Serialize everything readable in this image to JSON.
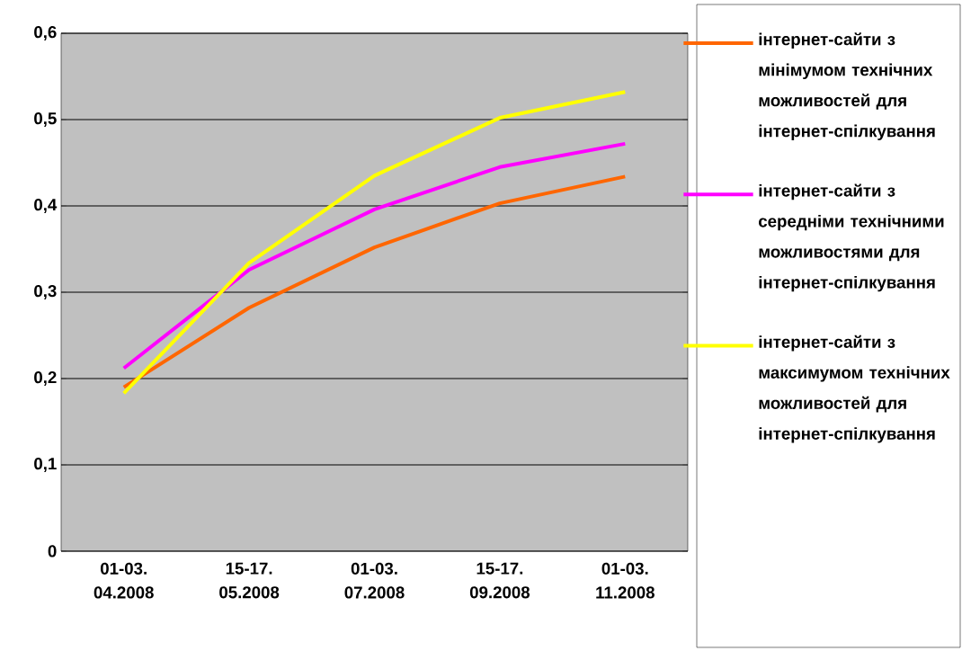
{
  "chart_data": {
    "type": "line",
    "categories": [
      "01-03. 04.2008",
      "15-17. 05.2008",
      "01-03. 07.2008",
      "15-17. 09.2008",
      "01-03. 11.2008"
    ],
    "series": [
      {
        "name": "інтернет-сайти з мінімумом технічних можливостей для інтернет-спілкування",
        "color": "#ff6600",
        "values": [
          0.19,
          0.282,
          0.352,
          0.403,
          0.434
        ]
      },
      {
        "name": "інтернет-сайти з середніми технічними можливостями для інтернет-спілкування",
        "color": "#ff00ff",
        "values": [
          0.212,
          0.326,
          0.396,
          0.445,
          0.472
        ]
      },
      {
        "name": "інтернет-сайти з максимумом технічних можливостей для інтернет-спілкування",
        "color": "#ffff00",
        "values": [
          0.183,
          0.334,
          0.435,
          0.502,
          0.532
        ]
      }
    ],
    "ylim": [
      0,
      0.6
    ],
    "yticks": [
      0,
      {
        "value": 0.1,
        "label": "0,1"
      },
      {
        "value": 0.2,
        "label": "0,2"
      },
      {
        "value": 0.3,
        "label": "0,3"
      },
      {
        "value": 0.4,
        "label": "0,4"
      },
      {
        "value": 0.5,
        "label": "0,5"
      },
      {
        "value": 0.6,
        "label": "0,6"
      }
    ],
    "grid": "y",
    "legend": "right",
    "marker": "none",
    "line_style": "solid"
  }
}
